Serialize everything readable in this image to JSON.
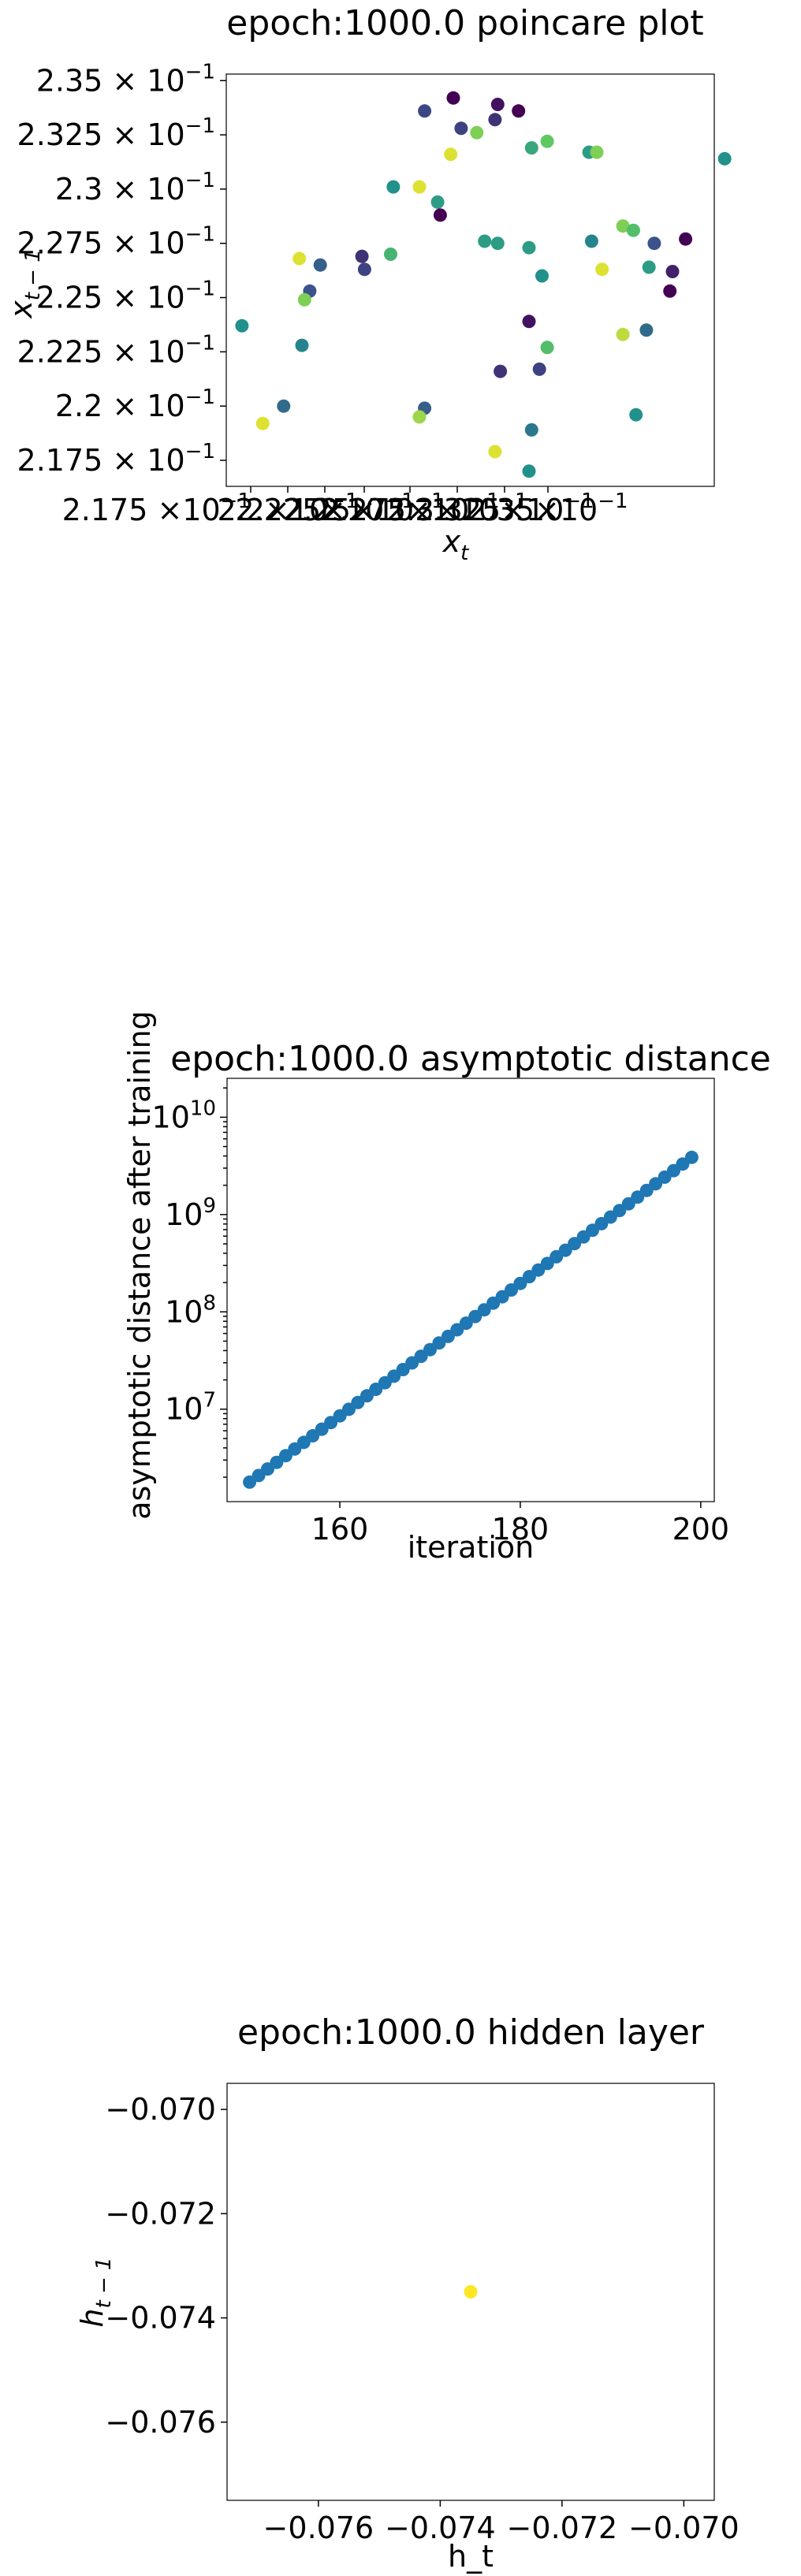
{
  "chart_data": [
    {
      "type": "scatter",
      "title": "epoch:1000.0 poincare plot",
      "xlabel": "x_t",
      "ylabel": "x_{t-1}",
      "xlim": [
        0.2166,
        0.2353
      ],
      "ylim": [
        0.2163,
        0.2353
      ],
      "x_tick_labels": [
        "2.175 ×10^-1",
        "2.2×10^-1",
        "2.225×10^-1",
        "2.25×10^-1",
        "2.275×10^-1",
        "2.3×10^-1",
        "2.325×10^-1",
        "2.35×10^-1"
      ],
      "y_ticks": [
        {
          "value": 0.2175,
          "label": "2.175 × 10^-1"
        },
        {
          "value": 0.22,
          "label": "2.2 × 10^-1"
        },
        {
          "value": 0.2225,
          "label": "2.225 × 10^-1"
        },
        {
          "value": 0.225,
          "label": "2.25 × 10^-1"
        },
        {
          "value": 0.2275,
          "label": "2.275 × 10^-1"
        },
        {
          "value": 0.23,
          "label": "2.3 × 10^-1"
        },
        {
          "value": 0.2325,
          "label": "2.325 × 10^-1"
        },
        {
          "value": 0.235,
          "label": "2.35 × 10^-1"
        }
      ],
      "colormap": "viridis",
      "points": [
        {
          "x": 0.2253,
          "y": 0.2342,
          "c": 0.0
        },
        {
          "x": 0.2242,
          "y": 0.2336,
          "c": 0.22
        },
        {
          "x": 0.227,
          "y": 0.2339,
          "c": 0.05
        },
        {
          "x": 0.2269,
          "y": 0.2332,
          "c": 0.15
        },
        {
          "x": 0.2256,
          "y": 0.2328,
          "c": 0.2
        },
        {
          "x": 0.2262,
          "y": 0.2326,
          "c": 0.8
        },
        {
          "x": 0.2278,
          "y": 0.2336,
          "c": 0.0
        },
        {
          "x": 0.2289,
          "y": 0.2322,
          "c": 0.75
        },
        {
          "x": 0.2283,
          "y": 0.2319,
          "c": 0.6
        },
        {
          "x": 0.2252,
          "y": 0.2316,
          "c": 0.95
        },
        {
          "x": 0.2305,
          "y": 0.2317,
          "c": 0.55
        },
        {
          "x": 0.2308,
          "y": 0.2317,
          "c": 0.8
        },
        {
          "x": 0.2357,
          "y": 0.2314,
          "c": 0.5
        },
        {
          "x": 0.223,
          "y": 0.2301,
          "c": 0.5
        },
        {
          "x": 0.224,
          "y": 0.2301,
          "c": 0.95
        },
        {
          "x": 0.2247,
          "y": 0.2294,
          "c": 0.55
        },
        {
          "x": 0.2248,
          "y": 0.2288,
          "c": 0.0
        },
        {
          "x": 0.2265,
          "y": 0.2276,
          "c": 0.55
        },
        {
          "x": 0.227,
          "y": 0.2275,
          "c": 0.55
        },
        {
          "x": 0.2282,
          "y": 0.2273,
          "c": 0.55
        },
        {
          "x": 0.2306,
          "y": 0.2276,
          "c": 0.45
        },
        {
          "x": 0.2318,
          "y": 0.2283,
          "c": 0.8
        },
        {
          "x": 0.2322,
          "y": 0.2281,
          "c": 0.7
        },
        {
          "x": 0.233,
          "y": 0.2275,
          "c": 0.25
        },
        {
          "x": 0.2342,
          "y": 0.2277,
          "c": 0.0
        },
        {
          "x": 0.2328,
          "y": 0.2264,
          "c": 0.55
        },
        {
          "x": 0.2337,
          "y": 0.2262,
          "c": 0.1
        },
        {
          "x": 0.2336,
          "y": 0.2253,
          "c": 0.0
        },
        {
          "x": 0.231,
          "y": 0.2263,
          "c": 0.95
        },
        {
          "x": 0.2194,
          "y": 0.2268,
          "c": 0.95
        },
        {
          "x": 0.2218,
          "y": 0.2269,
          "c": 0.15
        },
        {
          "x": 0.2219,
          "y": 0.2263,
          "c": 0.2
        },
        {
          "x": 0.2202,
          "y": 0.2265,
          "c": 0.3
        },
        {
          "x": 0.2198,
          "y": 0.2253,
          "c": 0.25
        },
        {
          "x": 0.2229,
          "y": 0.227,
          "c": 0.65
        },
        {
          "x": 0.2287,
          "y": 0.226,
          "c": 0.5
        },
        {
          "x": 0.2196,
          "y": 0.2249,
          "c": 0.8
        },
        {
          "x": 0.2172,
          "y": 0.2237,
          "c": 0.5
        },
        {
          "x": 0.2282,
          "y": 0.2239,
          "c": 0.05
        },
        {
          "x": 0.2318,
          "y": 0.2233,
          "c": 0.9
        },
        {
          "x": 0.2327,
          "y": 0.2235,
          "c": 0.35
        },
        {
          "x": 0.2195,
          "y": 0.2228,
          "c": 0.45
        },
        {
          "x": 0.2289,
          "y": 0.2227,
          "c": 0.7
        },
        {
          "x": 0.2271,
          "y": 0.2216,
          "c": 0.15
        },
        {
          "x": 0.2286,
          "y": 0.2217,
          "c": 0.2
        },
        {
          "x": 0.2188,
          "y": 0.22,
          "c": 0.35
        },
        {
          "x": 0.2242,
          "y": 0.2199,
          "c": 0.3
        },
        {
          "x": 0.224,
          "y": 0.2195,
          "c": 0.85
        },
        {
          "x": 0.218,
          "y": 0.2192,
          "c": 0.95
        },
        {
          "x": 0.2323,
          "y": 0.2196,
          "c": 0.5
        },
        {
          "x": 0.2283,
          "y": 0.2189,
          "c": 0.4
        },
        {
          "x": 0.2269,
          "y": 0.2179,
          "c": 0.95
        },
        {
          "x": 0.2282,
          "y": 0.217,
          "c": 0.5
        }
      ]
    },
    {
      "type": "scatter",
      "title": "epoch:1000.0 asymptotic distance",
      "xlabel": "iteration",
      "ylabel": "asymptotic distance after training",
      "yscale": "log",
      "xlim": [
        147.5,
        201.5
      ],
      "ylim_log10": [
        6.05,
        10.4
      ],
      "x_ticks": [
        160,
        180,
        200
      ],
      "y_ticks": [
        {
          "exp": 7,
          "label": "10^7"
        },
        {
          "exp": 8,
          "label": "10^8"
        },
        {
          "exp": 9,
          "label": "10^9"
        },
        {
          "exp": 10,
          "label": "10^10"
        }
      ],
      "color": "#1f77b4",
      "x": [
        150,
        151,
        152,
        153,
        154,
        155,
        156,
        157,
        158,
        159,
        160,
        161,
        162,
        163,
        164,
        165,
        166,
        167,
        168,
        169,
        170,
        171,
        172,
        173,
        174,
        175,
        176,
        177,
        178,
        179,
        180,
        181,
        182,
        183,
        184,
        185,
        186,
        187,
        188,
        189,
        190,
        191,
        192,
        193,
        194,
        195,
        196,
        197,
        198,
        199
      ],
      "y": [
        1780000.0,
        2080000.0,
        2430000.0,
        2840000.0,
        3330000.0,
        3890000.0,
        4550000.0,
        5330000.0,
        6230000.0,
        7290000.0,
        8530000.0,
        9970000.0,
        11700000.0,
        13700000.0,
        16000000.0,
        18700000.0,
        21800000.0,
        25500000.0,
        29900000.0,
        35000000.0,
        40900000.0,
        47900000.0,
        56000000.0,
        65500000.0,
        76600000.0,
        89600000.0,
        105000000.0,
        123000000.0,
        143000000.0,
        168000000.0,
        196000000.0,
        230000000.0,
        269000000.0,
        314000000.0,
        368000000.0,
        430000000.0,
        503000000.0,
        589000000.0,
        689000000.0,
        806000000.0,
        943000000.0,
        1100000000.0,
        1290000000.0,
        1510000000.0,
        1770000000.0,
        2070000000.0,
        2420000000.0,
        2830000000.0,
        3310000000.0,
        3870000000.0
      ]
    },
    {
      "type": "scatter",
      "title": "epoch:1000.0 hidden layer",
      "xlabel": "h_t",
      "ylabel": "h_{t-1}",
      "xlim": [
        -0.0775,
        -0.0695
      ],
      "ylim": [
        -0.0775,
        -0.0695
      ],
      "x_ticks": [
        -0.076,
        -0.074,
        -0.072,
        -0.07
      ],
      "y_ticks": [
        -0.076,
        -0.074,
        -0.072,
        -0.07
      ],
      "x_tick_labels": [
        "−0.076",
        "−0.074",
        "−0.072",
        "−0.070"
      ],
      "y_tick_labels": [
        "−0.076",
        "−0.074",
        "−0.072",
        "−0.070"
      ],
      "color": "#fde725",
      "x": [
        -0.0735
      ],
      "y": [
        -0.0735
      ]
    }
  ]
}
